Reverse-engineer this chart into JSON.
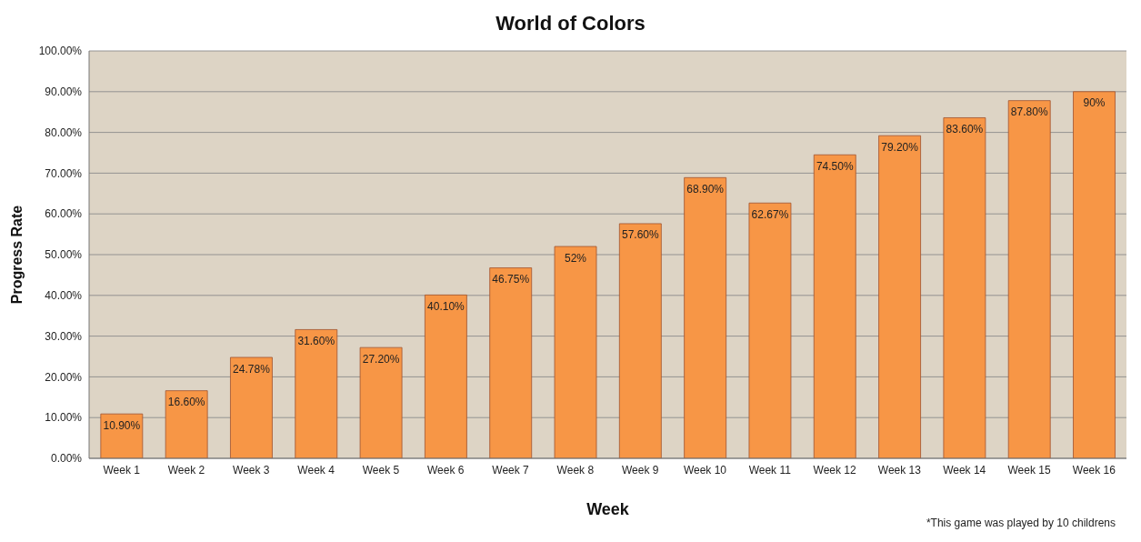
{
  "chart_data": {
    "type": "bar",
    "title": "World of Colors",
    "xlabel": "Week",
    "ylabel": "Progress Rate",
    "categories": [
      "Week 1",
      "Week 2",
      "Week 3",
      "Week 4",
      "Week 5",
      "Week 6",
      "Week 7",
      "Week 8",
      "Week 9",
      "Week 10",
      "Week 11",
      "Week 12",
      "Week 13",
      "Week 14",
      "Week 15",
      "Week 16"
    ],
    "values": [
      10.9,
      16.6,
      24.78,
      31.6,
      27.2,
      40.1,
      46.75,
      52,
      57.6,
      68.9,
      62.67,
      74.5,
      79.2,
      83.6,
      87.8,
      90
    ],
    "value_labels": [
      "10.90%",
      "16.60%",
      "24.78%",
      "31.60%",
      "27.20%",
      "40.10%",
      "46.75%",
      "52%",
      "57.60%",
      "68.90%",
      "62.67%",
      "74.50%",
      "79.20%",
      "83.60%",
      "87.80%",
      "90%"
    ],
    "color": "#f79646",
    "ylim": [
      0,
      100
    ],
    "yticks": [
      {
        "value": 0,
        "label": "0.00%"
      },
      {
        "value": 10,
        "label": "10.00%"
      },
      {
        "value": 20,
        "label": "20.00%"
      },
      {
        "value": 30,
        "label": "30.00%"
      },
      {
        "value": 40,
        "label": "40.00%"
      },
      {
        "value": 50,
        "label": "50.00%"
      },
      {
        "value": 60,
        "label": "60.00%"
      },
      {
        "value": 70,
        "label": "70.00%"
      },
      {
        "value": 80,
        "label": "80.00%"
      },
      {
        "value": 90,
        "label": "90.00%"
      },
      {
        "value": 100,
        "label": "100.00%"
      }
    ],
    "grid": "y",
    "legend": false,
    "annotations": [
      "*This game was played by 10 childrens"
    ]
  }
}
